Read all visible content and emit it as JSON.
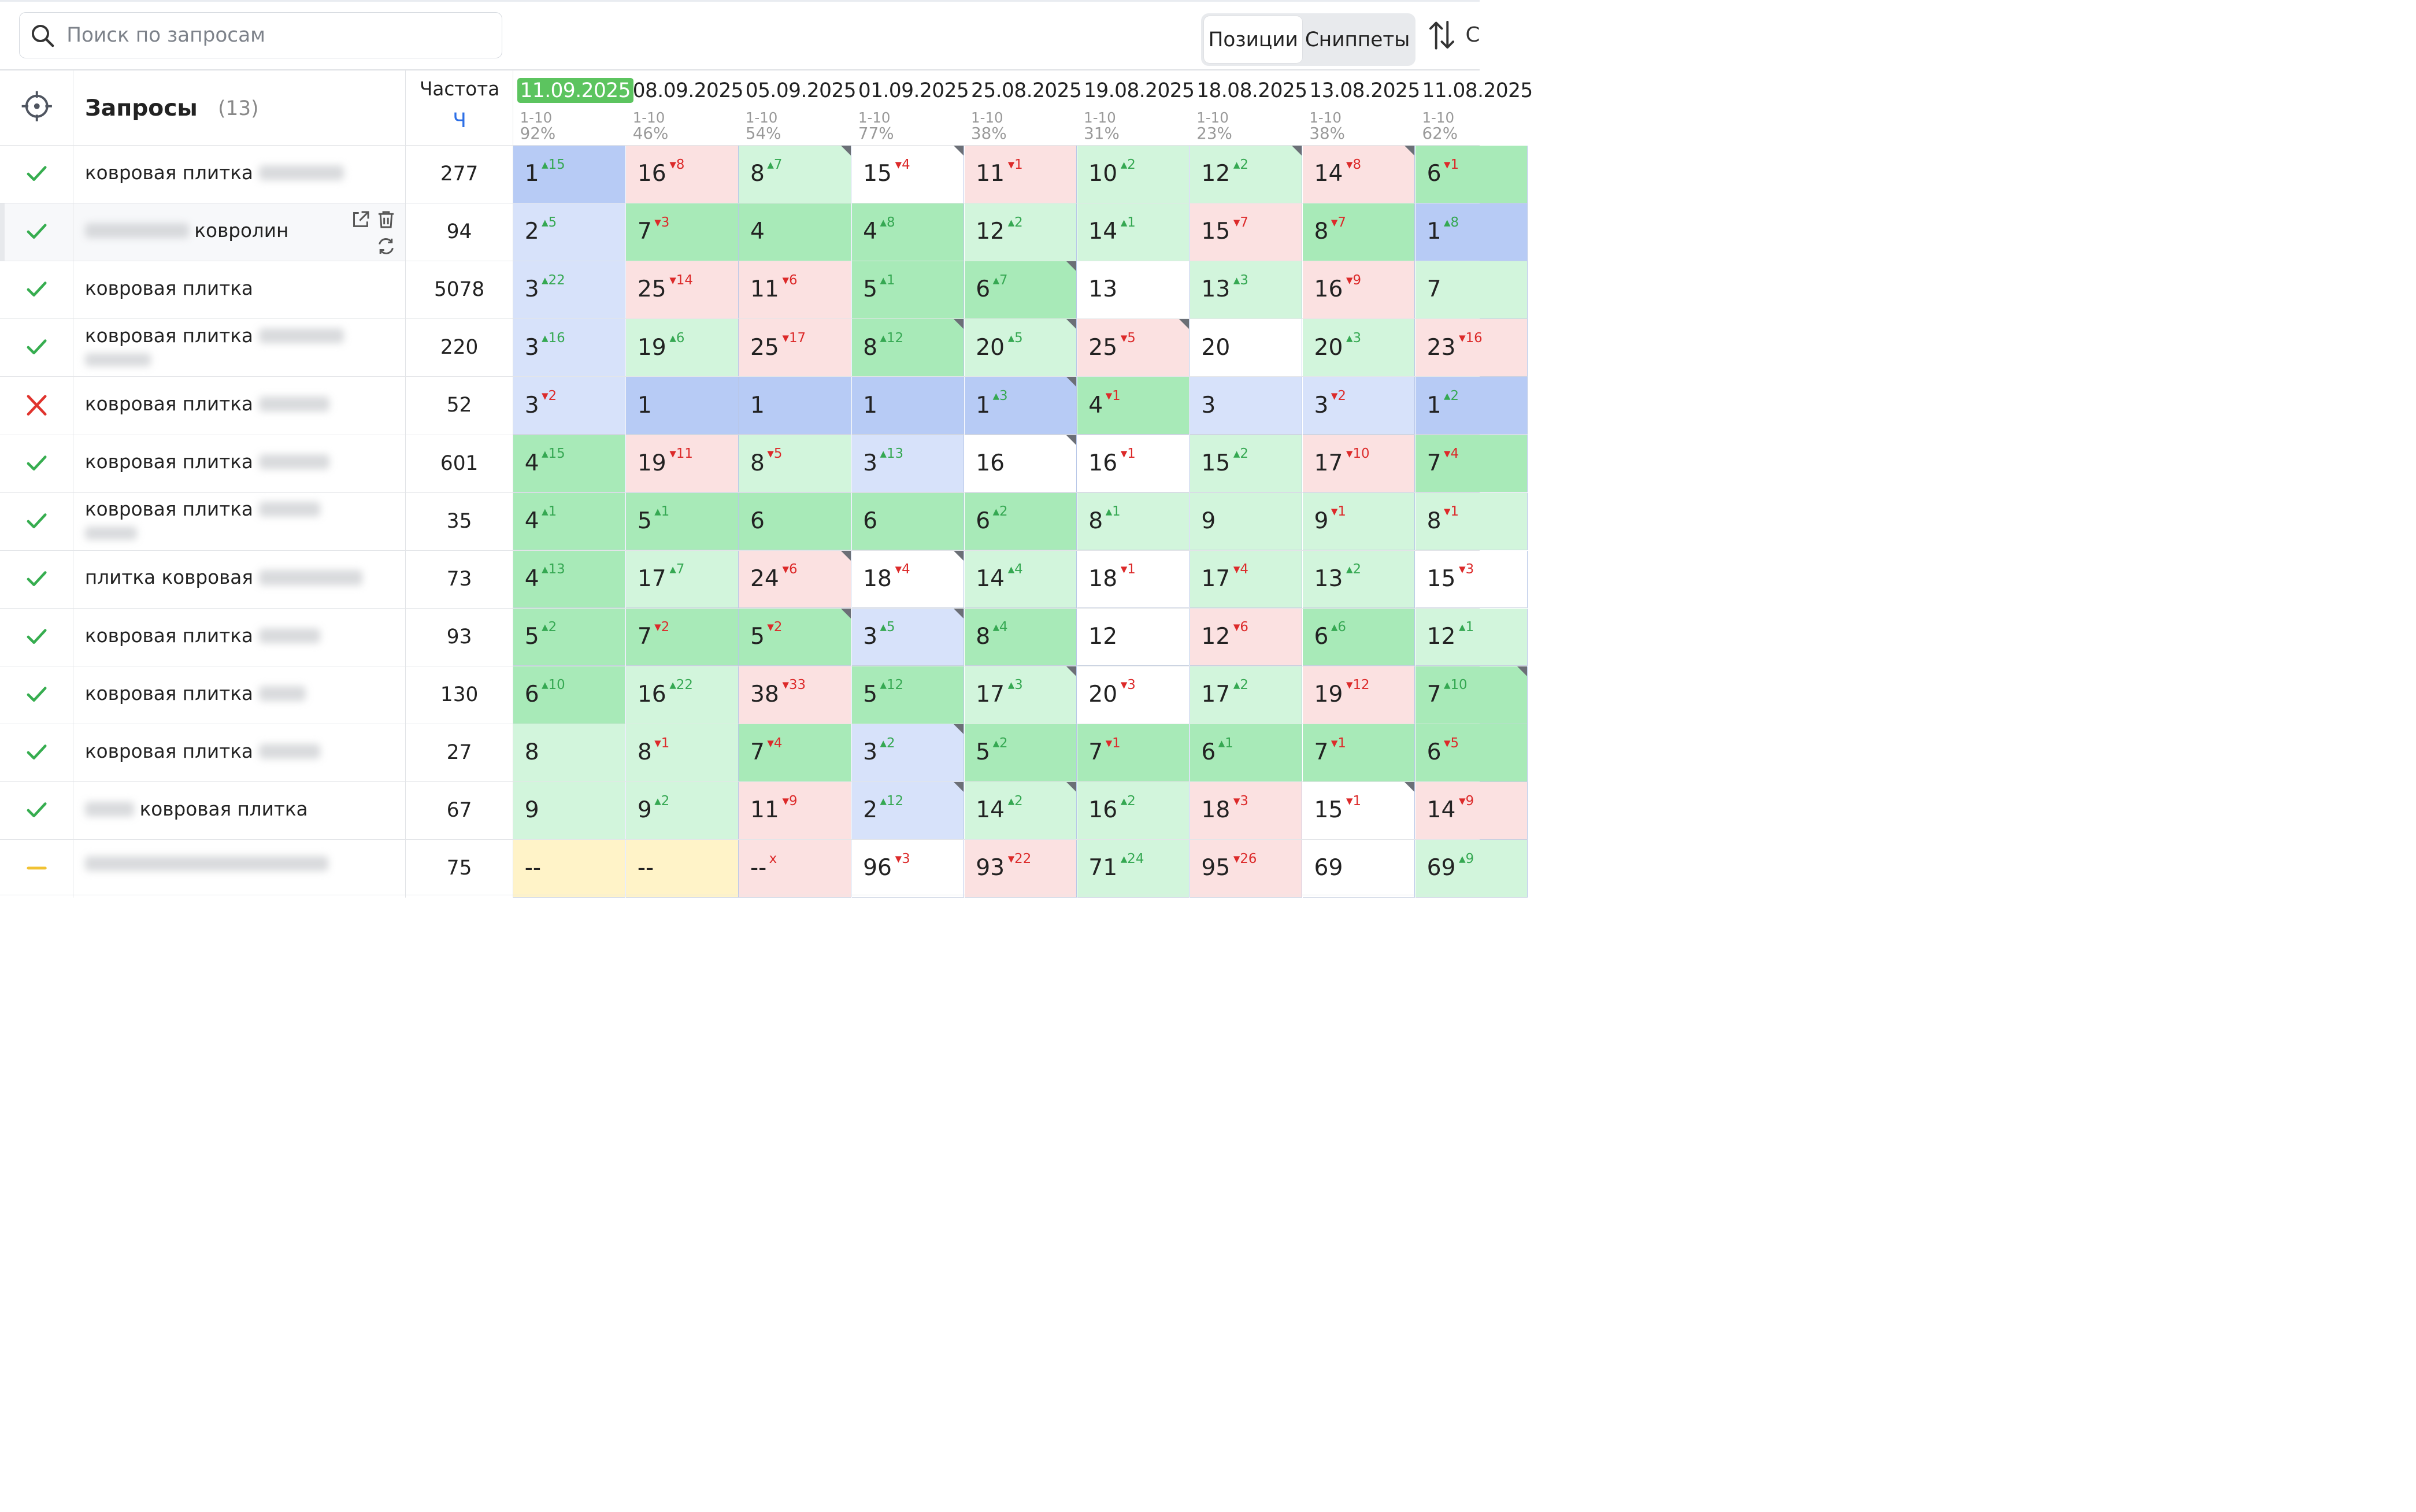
{
  "search": {
    "placeholder": "Поиск по запросам"
  },
  "toolbar": {
    "tab_positions": "Позиции",
    "tab_snippets": "Сниппеты",
    "sort_label": "С"
  },
  "header": {
    "queries_title": "Запросы",
    "queries_count": "(13)",
    "freq_label": "Частота",
    "freq_sub": "Ч"
  },
  "colors": {
    "blue": "#b7cbf5",
    "lightblue": "#d7e2fa",
    "green": "#a8eab8",
    "lightgreen": "#d2f5dc",
    "pink": "#fbe1e1",
    "white": "#ffffff",
    "yellow": "#fff3c8",
    "current_date": "#5cc45f"
  },
  "dates": [
    {
      "date": "11.09.2025",
      "range": "1-10",
      "pct": "92%",
      "current": true
    },
    {
      "date": "08.09.2025",
      "range": "1-10",
      "pct": "46%"
    },
    {
      "date": "05.09.2025",
      "range": "1-10",
      "pct": "54%"
    },
    {
      "date": "01.09.2025",
      "range": "1-10",
      "pct": "77%"
    },
    {
      "date": "25.08.2025",
      "range": "1-10",
      "pct": "38%"
    },
    {
      "date": "19.08.2025",
      "range": "1-10",
      "pct": "31%"
    },
    {
      "date": "18.08.2025",
      "range": "1-10",
      "pct": "23%"
    },
    {
      "date": "13.08.2025",
      "range": "1-10",
      "pct": "38%"
    },
    {
      "date": "11.08.2025",
      "range": "1-10",
      "pct": "62%"
    }
  ],
  "rows": [
    {
      "status": "check",
      "pre": "",
      "text": "ковровая плитка",
      "post_blur": true,
      "freq": "277",
      "cells": [
        [
          "1",
          "+15",
          "blue",
          0
        ],
        [
          "16",
          "-8",
          "pink",
          0
        ],
        [
          "8",
          "+7",
          "lightgreen",
          1
        ],
        [
          "15",
          "-4",
          "white",
          1
        ],
        [
          "11",
          "-1",
          "pink",
          0
        ],
        [
          "10",
          "+2",
          "lightgreen",
          0
        ],
        [
          "12",
          "+2",
          "lightgreen",
          1
        ],
        [
          "14",
          "-8",
          "pink",
          1
        ],
        [
          "6",
          "-1",
          "green",
          0
        ]
      ]
    },
    {
      "status": "check",
      "pre_blur": true,
      "text": "ковролин",
      "freq": "94",
      "highlight": true,
      "actions": true,
      "cells": [
        [
          "2",
          "+5",
          "lightblue",
          0
        ],
        [
          "7",
          "-3",
          "green",
          0
        ],
        [
          "4",
          "",
          "green",
          0
        ],
        [
          "4",
          "+8",
          "green",
          0
        ],
        [
          "12",
          "+2",
          "lightgreen",
          0
        ],
        [
          "14",
          "+1",
          "lightgreen",
          0
        ],
        [
          "15",
          "-7",
          "pink",
          0
        ],
        [
          "8",
          "-7",
          "green",
          0
        ],
        [
          "1",
          "+8",
          "blue",
          0
        ]
      ]
    },
    {
      "status": "check",
      "text": "ковровая плитка",
      "freq": "5078",
      "cells": [
        [
          "3",
          "+22",
          "lightblue",
          0
        ],
        [
          "25",
          "-14",
          "pink",
          0
        ],
        [
          "11",
          "-6",
          "pink",
          0
        ],
        [
          "5",
          "+1",
          "green",
          0
        ],
        [
          "6",
          "+7",
          "green",
          1
        ],
        [
          "13",
          "",
          "white",
          0
        ],
        [
          "13",
          "+3",
          "lightgreen",
          0
        ],
        [
          "16",
          "-9",
          "pink",
          0
        ],
        [
          "7",
          "",
          "lightgreen",
          0
        ]
      ]
    },
    {
      "status": "check",
      "text": "ковровая плитка",
      "post_blur": true,
      "two_line": true,
      "freq": "220",
      "cells": [
        [
          "3",
          "+16",
          "lightblue",
          0
        ],
        [
          "19",
          "+6",
          "lightgreen",
          0
        ],
        [
          "25",
          "-17",
          "pink",
          0
        ],
        [
          "8",
          "+12",
          "green",
          1
        ],
        [
          "20",
          "+5",
          "lightgreen",
          1
        ],
        [
          "25",
          "-5",
          "pink",
          1
        ],
        [
          "20",
          "",
          "white",
          0
        ],
        [
          "20",
          "+3",
          "lightgreen",
          0
        ],
        [
          "23",
          "-16",
          "pink",
          0
        ]
      ]
    },
    {
      "status": "cross",
      "text": "ковровая плитка",
      "post_blur": true,
      "freq": "52",
      "cells": [
        [
          "3",
          "-2",
          "lightblue",
          0
        ],
        [
          "1",
          "",
          "blue",
          0
        ],
        [
          "1",
          "",
          "blue",
          0
        ],
        [
          "1",
          "",
          "blue",
          0
        ],
        [
          "1",
          "+3",
          "blue",
          1
        ],
        [
          "4",
          "-1",
          "green",
          0
        ],
        [
          "3",
          "",
          "lightblue",
          0
        ],
        [
          "3",
          "-2",
          "lightblue",
          0
        ],
        [
          "1",
          "+2",
          "blue",
          0
        ]
      ]
    },
    {
      "status": "check",
      "text": "ковровая плитка",
      "post_blur": true,
      "freq": "601",
      "cells": [
        [
          "4",
          "+15",
          "green",
          0
        ],
        [
          "19",
          "-11",
          "pink",
          0
        ],
        [
          "8",
          "-5",
          "lightgreen",
          0
        ],
        [
          "3",
          "+13",
          "lightblue",
          0
        ],
        [
          "16",
          "",
          "white",
          1
        ],
        [
          "16",
          "-1",
          "white",
          0
        ],
        [
          "15",
          "+2",
          "lightgreen",
          0
        ],
        [
          "17",
          "-10",
          "pink",
          0
        ],
        [
          "7",
          "-4",
          "green",
          0
        ]
      ]
    },
    {
      "status": "check",
      "text": "ковровая плитка",
      "post_blur": true,
      "two_line": true,
      "freq": "35",
      "cells": [
        [
          "4",
          "+1",
          "green",
          0
        ],
        [
          "5",
          "+1",
          "green",
          0
        ],
        [
          "6",
          "",
          "green",
          0
        ],
        [
          "6",
          "",
          "green",
          0
        ],
        [
          "6",
          "+2",
          "green",
          0
        ],
        [
          "8",
          "+1",
          "lightgreen",
          0
        ],
        [
          "9",
          "",
          "lightgreen",
          0
        ],
        [
          "9",
          "-1",
          "lightgreen",
          0
        ],
        [
          "8",
          "-1",
          "lightgreen",
          0
        ]
      ]
    },
    {
      "status": "check",
      "text": "плитка ковровая",
      "post_blur": true,
      "freq": "73",
      "cells": [
        [
          "4",
          "+13",
          "green",
          0
        ],
        [
          "17",
          "+7",
          "lightgreen",
          0
        ],
        [
          "24",
          "-6",
          "pink",
          1
        ],
        [
          "18",
          "-4",
          "white",
          1
        ],
        [
          "14",
          "+4",
          "lightgreen",
          0
        ],
        [
          "18",
          "-1",
          "white",
          0
        ],
        [
          "17",
          "-4",
          "lightgreen",
          0
        ],
        [
          "13",
          "+2",
          "lightgreen",
          0
        ],
        [
          "15",
          "-3",
          "white",
          0
        ]
      ]
    },
    {
      "status": "check",
      "text": "ковровая плитка",
      "post_blur": true,
      "freq": "93",
      "cells": [
        [
          "5",
          "+2",
          "green",
          0
        ],
        [
          "7",
          "-2",
          "green",
          0
        ],
        [
          "5",
          "-2",
          "green",
          1
        ],
        [
          "3",
          "+5",
          "lightblue",
          1
        ],
        [
          "8",
          "+4",
          "green",
          0
        ],
        [
          "12",
          "",
          "white",
          0
        ],
        [
          "12",
          "-6",
          "pink",
          0
        ],
        [
          "6",
          "+6",
          "green",
          0
        ],
        [
          "12",
          "+1",
          "lightgreen",
          0
        ]
      ]
    },
    {
      "status": "check",
      "text": "ковровая плитка",
      "post_blur": true,
      "freq": "130",
      "cells": [
        [
          "6",
          "+10",
          "green",
          0
        ],
        [
          "16",
          "+22",
          "lightgreen",
          0
        ],
        [
          "38",
          "-33",
          "pink",
          0
        ],
        [
          "5",
          "+12",
          "green",
          0
        ],
        [
          "17",
          "+3",
          "lightgreen",
          1
        ],
        [
          "20",
          "-3",
          "white",
          0
        ],
        [
          "17",
          "+2",
          "lightgreen",
          0
        ],
        [
          "19",
          "-12",
          "pink",
          0
        ],
        [
          "7",
          "+10",
          "green",
          1
        ]
      ]
    },
    {
      "status": "check",
      "text": "ковровая плитка",
      "post_blur": true,
      "freq": "27",
      "cells": [
        [
          "8",
          "",
          "lightgreen",
          0
        ],
        [
          "8",
          "-1",
          "lightgreen",
          0
        ],
        [
          "7",
          "-4",
          "green",
          0
        ],
        [
          "3",
          "+2",
          "lightblue",
          1
        ],
        [
          "5",
          "+2",
          "green",
          0
        ],
        [
          "7",
          "-1",
          "green",
          0
        ],
        [
          "6",
          "+1",
          "green",
          0
        ],
        [
          "7",
          "-1",
          "green",
          0
        ],
        [
          "6",
          "-5",
          "green",
          0
        ]
      ]
    },
    {
      "status": "check",
      "pre_blur": true,
      "text": "ковровая плитка",
      "freq": "67",
      "cells": [
        [
          "9",
          "",
          "lightgreen",
          0
        ],
        [
          "9",
          "+2",
          "lightgreen",
          0
        ],
        [
          "11",
          "-9",
          "pink",
          0
        ],
        [
          "2",
          "+12",
          "lightblue",
          1
        ],
        [
          "14",
          "+2",
          "lightgreen",
          1
        ],
        [
          "16",
          "+2",
          "lightgreen",
          0
        ],
        [
          "18",
          "-3",
          "pink",
          0
        ],
        [
          "15",
          "-1",
          "white",
          1
        ],
        [
          "14",
          "-9",
          "pink",
          0
        ]
      ]
    },
    {
      "status": "dash",
      "full_blur": true,
      "text": "",
      "freq": "75",
      "cells": [
        [
          "--",
          "",
          "yellow",
          0
        ],
        [
          "--",
          "",
          "yellow",
          0
        ],
        [
          "--",
          "x",
          "pink",
          0
        ],
        [
          "96",
          "-3",
          "white",
          0
        ],
        [
          "93",
          "-22",
          "pink",
          0
        ],
        [
          "71",
          "+24",
          "lightgreen",
          0
        ],
        [
          "95",
          "-26",
          "pink",
          0
        ],
        [
          "69",
          "",
          "white",
          0
        ],
        [
          "69",
          "+9",
          "lightgreen",
          0
        ]
      ]
    }
  ]
}
